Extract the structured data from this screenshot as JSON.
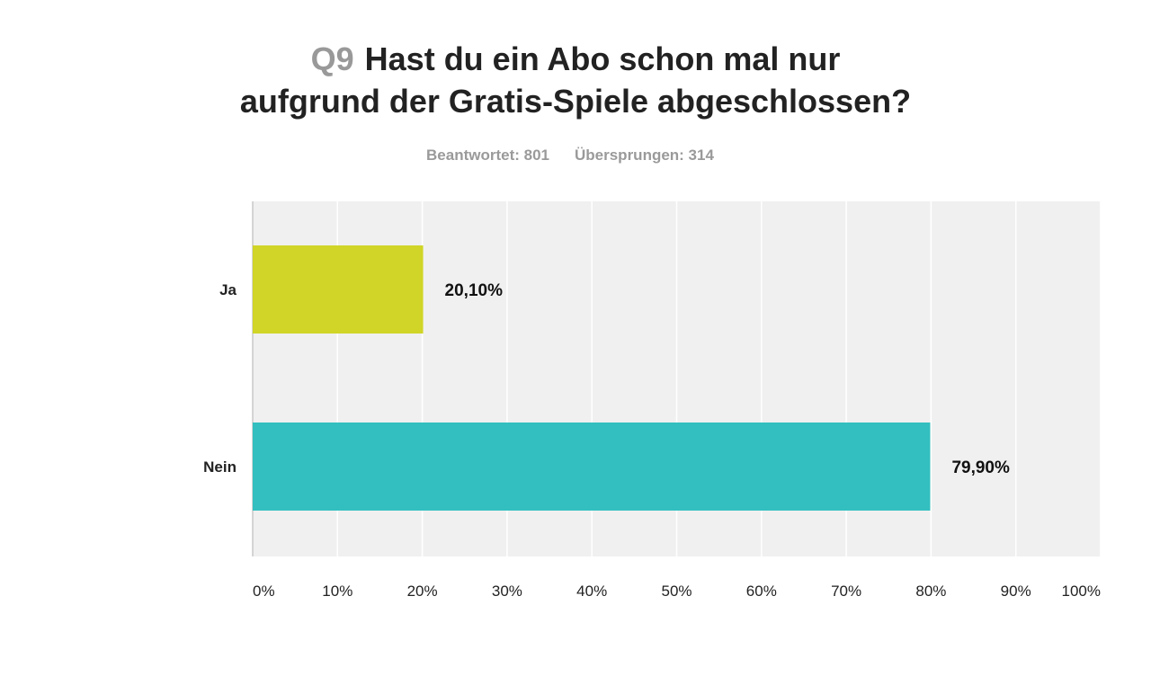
{
  "chart_data": {
    "type": "bar",
    "orientation": "horizontal",
    "question_number": "Q9",
    "title_lines": [
      "Hast du ein Abo schon mal nur",
      "aufgrund der Gratis-Spiele abgeschlossen?"
    ],
    "stats": {
      "answered": "Beantwortet: 801",
      "skipped": "Übersprungen: 314"
    },
    "categories": [
      "Ja",
      "Nein"
    ],
    "values": [
      20.1,
      79.9
    ],
    "value_labels": [
      "20,10%",
      "79,90%"
    ],
    "bar_colors": [
      "#d0d527",
      "#33bfbf"
    ],
    "xlim": [
      0,
      100
    ],
    "xticks": [
      0,
      10,
      20,
      30,
      40,
      50,
      60,
      70,
      80,
      90,
      100
    ],
    "xtick_labels": [
      "0%",
      "10%",
      "20%",
      "30%",
      "40%",
      "50%",
      "60%",
      "70%",
      "80%",
      "90%",
      "100%"
    ],
    "grid": true,
    "legend": "none",
    "plot_background": "#f0f0f0"
  }
}
